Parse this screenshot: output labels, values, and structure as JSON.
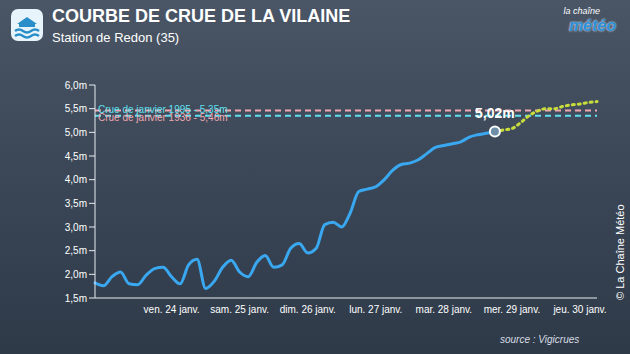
{
  "chart_data": {
    "type": "line",
    "title": "COURBE DE CRUE DE LA VILAINE",
    "subtitle": "Station de Redon (35)",
    "source": "source : Vigicrues",
    "logo": [
      "la chaîne",
      "météo"
    ],
    "copyright": "© La Chaîne Météo",
    "categories": [
      null,
      null,
      null,
      null,
      null,
      null,
      null,
      null,
      null,
      "ven. 24 janv.",
      null,
      null,
      null,
      null,
      null,
      null,
      null,
      "sam. 25 janv.",
      null,
      null,
      null,
      null,
      null,
      null,
      null,
      "dim. 26 janv.",
      null,
      null,
      null,
      null,
      null,
      null,
      null,
      "lun. 27 janv.",
      null,
      null,
      null,
      null,
      null,
      null,
      null,
      "mar. 28 janv.",
      null,
      null,
      null,
      null,
      null,
      null,
      null,
      "mer. 29 janv.",
      null,
      null,
      null,
      null,
      null,
      null,
      null,
      "jeu. 30 janv.",
      null,
      null
    ],
    "series": [
      {
        "color": "#3aa8f0",
        "line_style": "solid",
        "values": [
          1.82,
          1.76,
          1.95,
          2.05,
          1.8,
          1.78,
          1.98,
          2.12,
          2.15,
          1.95,
          1.8,
          2.2,
          2.32,
          1.7,
          1.85,
          2.15,
          2.3,
          2.05,
          1.95,
          2.25,
          2.4,
          2.15,
          2.2,
          2.55,
          2.65,
          2.45,
          2.55,
          3.05,
          3.1,
          3.0,
          3.3,
          3.75,
          3.8,
          3.85,
          4.0,
          4.2,
          4.32,
          4.35,
          4.42,
          4.55,
          4.68,
          4.72,
          4.76,
          4.8,
          4.9,
          4.95,
          4.98,
          5.02,
          null,
          null,
          null,
          null,
          null,
          null,
          null,
          null,
          null,
          null,
          null,
          null
        ]
      },
      {
        "color": "#c8dc3c",
        "line_style": "dotted",
        "values": [
          null,
          null,
          null,
          null,
          null,
          null,
          null,
          null,
          null,
          null,
          null,
          null,
          null,
          null,
          null,
          null,
          null,
          null,
          null,
          null,
          null,
          null,
          null,
          null,
          null,
          null,
          null,
          null,
          null,
          null,
          null,
          null,
          null,
          null,
          null,
          null,
          null,
          null,
          null,
          null,
          null,
          null,
          null,
          null,
          null,
          null,
          null,
          5.02,
          5.05,
          5.08,
          5.2,
          5.35,
          5.45,
          5.5,
          5.5,
          5.55,
          5.58,
          5.6,
          5.63,
          5.65
        ]
      }
    ],
    "ylim": [
      1.5,
      6.0
    ],
    "yticks": [
      {
        "value": 1.5,
        "label": "1,5m"
      },
      {
        "value": 2.0,
        "label": "2,0m"
      },
      {
        "value": 2.5,
        "label": "2,5m"
      },
      {
        "value": 3.0,
        "label": "3,0m"
      },
      {
        "value": 3.5,
        "label": "3,5m"
      },
      {
        "value": 4.0,
        "label": "4,0m"
      },
      {
        "value": 4.5,
        "label": "4,5m"
      },
      {
        "value": 5.0,
        "label": "5,0m"
      },
      {
        "value": 5.5,
        "label": "5,5m"
      },
      {
        "value": 6.0,
        "label": "6,0m"
      }
    ],
    "grid": false,
    "annotations": [
      {
        "label": "Crue de janvier 1936 - 5,46m",
        "value": 5.46,
        "color": "#f0a8b0"
      },
      {
        "label": "Crue de janvier 1995 - 5,35m",
        "value": 5.35,
        "color": "#5fe0f0"
      },
      {
        "label": "5,02m",
        "index": 47,
        "value": 5.02
      }
    ]
  }
}
